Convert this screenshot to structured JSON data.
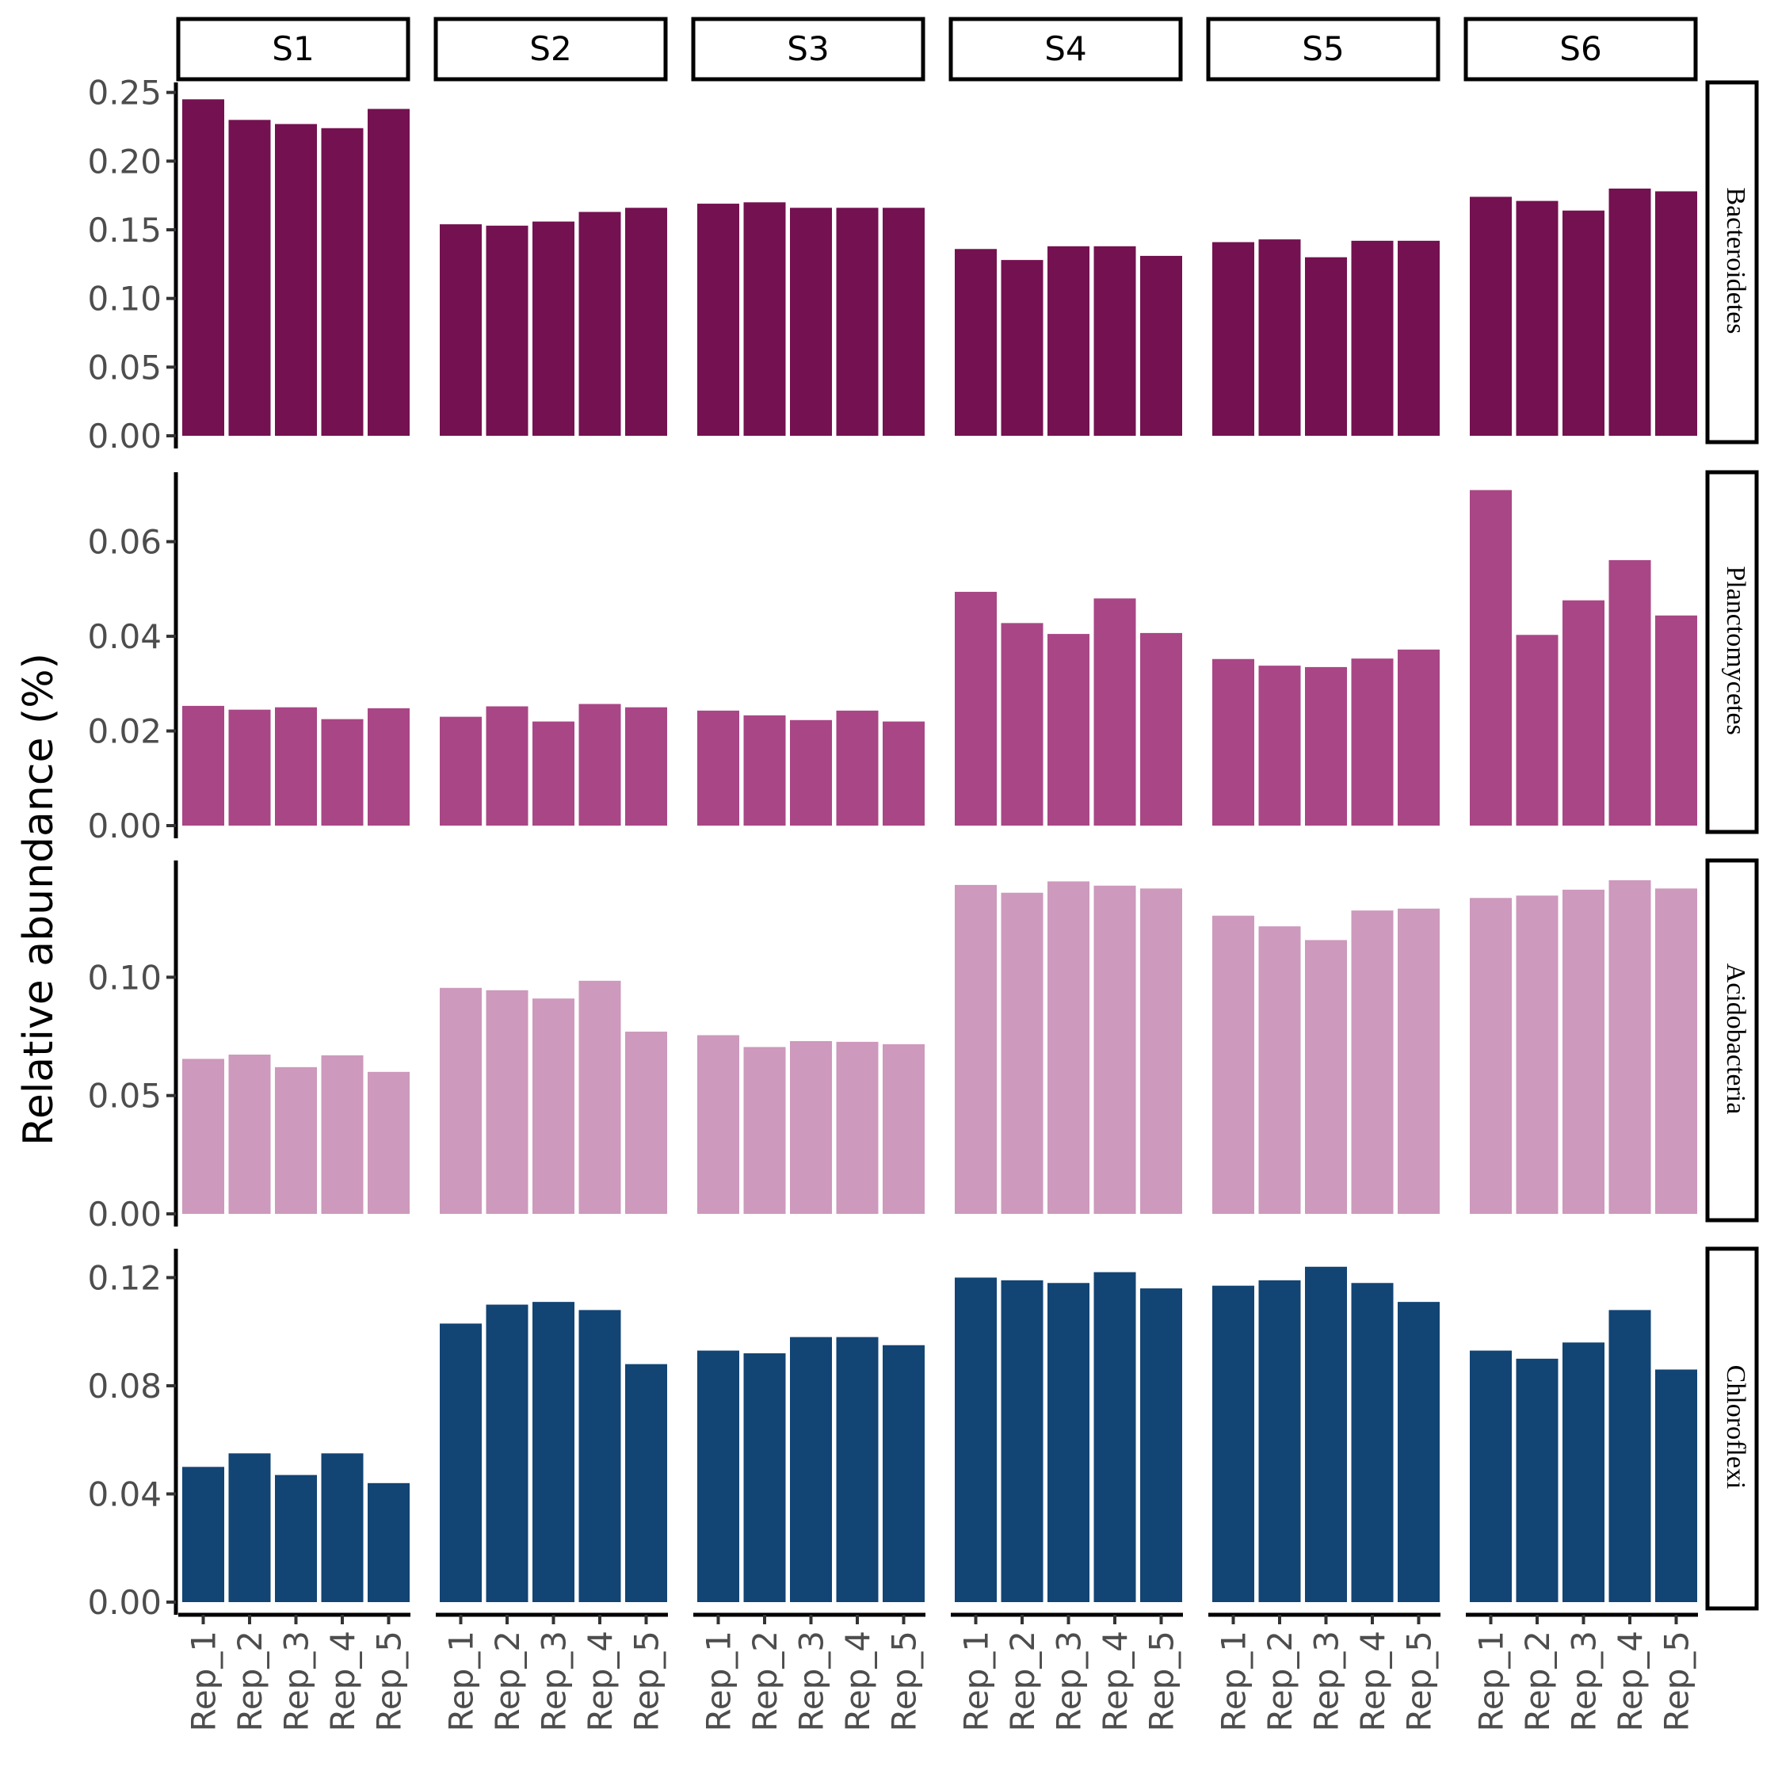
{
  "chart_data": {
    "type": "bar",
    "ylabel": "Relative abundance (%)",
    "xlabel": "",
    "facet_columns": [
      "S1",
      "S2",
      "S3",
      "S4",
      "S5",
      "S6"
    ],
    "categories": [
      "Rep_1",
      "Rep_2",
      "Rep_3",
      "Rep_4",
      "Rep_5"
    ],
    "grid": false,
    "legend": "none",
    "panels": [
      {
        "name": "Bacteroidetes",
        "color": "#741150",
        "ylim": [
          0,
          0.255
        ],
        "yticks": [
          0.0,
          0.05,
          0.1,
          0.15,
          0.2,
          0.25
        ],
        "ytick_labels": [
          "0.00",
          "0.05",
          "0.10",
          "0.15",
          "0.20",
          "0.25"
        ],
        "values": {
          "S1": [
            0.245,
            0.23,
            0.227,
            0.224,
            0.238
          ],
          "S2": [
            0.154,
            0.153,
            0.156,
            0.163,
            0.166
          ],
          "S3": [
            0.169,
            0.17,
            0.166,
            0.166,
            0.166
          ],
          "S4": [
            0.136,
            0.128,
            0.138,
            0.138,
            0.131
          ],
          "S5": [
            0.141,
            0.143,
            0.13,
            0.142,
            0.142
          ],
          "S6": [
            0.174,
            0.171,
            0.164,
            0.18,
            0.178
          ]
        }
      },
      {
        "name": "Planctomycetes",
        "color": "#a94686",
        "ylim": [
          0,
          0.074
        ],
        "yticks": [
          0.0,
          0.02,
          0.04,
          0.06
        ],
        "ytick_labels": [
          "0.00",
          "0.02",
          "0.04",
          "0.06"
        ],
        "values": {
          "S1": [
            0.0253,
            0.0245,
            0.025,
            0.0225,
            0.0248
          ],
          "S2": [
            0.023,
            0.0252,
            0.022,
            0.0257,
            0.025
          ],
          "S3": [
            0.0243,
            0.0233,
            0.0223,
            0.0243,
            0.022
          ],
          "S4": [
            0.0494,
            0.0428,
            0.0405,
            0.048,
            0.0407
          ],
          "S5": [
            0.0352,
            0.0338,
            0.0335,
            0.0353,
            0.0372
          ],
          "S6": [
            0.0709,
            0.0403,
            0.0476,
            0.0561,
            0.0444
          ]
        }
      },
      {
        "name": "Acidobacteria",
        "color": "#cd99bc",
        "ylim": [
          0,
          0.148
        ],
        "yticks": [
          0.0,
          0.05,
          0.1
        ],
        "ytick_labels": [
          "0.00",
          "0.05",
          "0.10"
        ],
        "values": {
          "S1": [
            0.0655,
            0.0673,
            0.062,
            0.067,
            0.06
          ],
          "S2": [
            0.0955,
            0.0945,
            0.091,
            0.0985,
            0.077
          ],
          "S3": [
            0.0755,
            0.0705,
            0.073,
            0.0727,
            0.0717
          ],
          "S4": [
            0.139,
            0.1357,
            0.1405,
            0.1387,
            0.1375
          ],
          "S5": [
            0.126,
            0.1215,
            0.1157,
            0.1282,
            0.129
          ],
          "S6": [
            0.1335,
            0.1345,
            0.137,
            0.141,
            0.1375
          ]
        }
      },
      {
        "name": "Chloroflexi",
        "color": "#124474",
        "ylim": [
          0,
          0.1295
        ],
        "yticks": [
          0.0,
          0.04,
          0.08,
          0.12
        ],
        "ytick_labels": [
          "0.00",
          "0.04",
          "0.08",
          "0.12"
        ],
        "values": {
          "S1": [
            0.05,
            0.055,
            0.047,
            0.055,
            0.044
          ],
          "S2": [
            0.103,
            0.11,
            0.111,
            0.108,
            0.088
          ],
          "S3": [
            0.093,
            0.092,
            0.098,
            0.098,
            0.095
          ],
          "S4": [
            0.12,
            0.119,
            0.118,
            0.122,
            0.116
          ],
          "S5": [
            0.117,
            0.119,
            0.124,
            0.118,
            0.111
          ],
          "S6": [
            0.093,
            0.09,
            0.096,
            0.108,
            0.086
          ]
        }
      }
    ]
  }
}
